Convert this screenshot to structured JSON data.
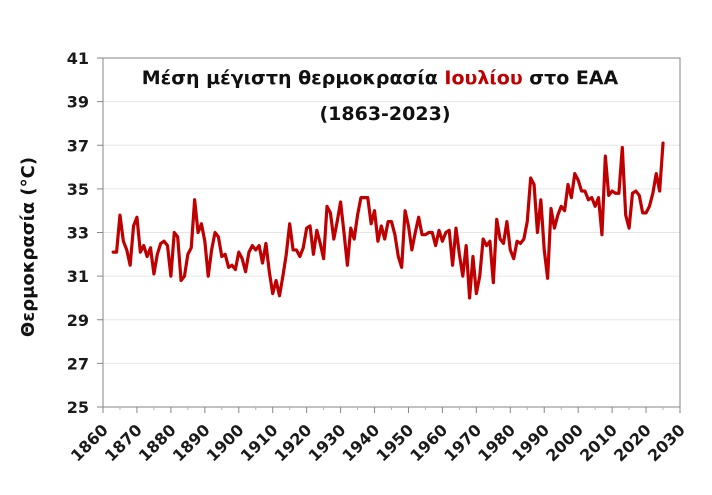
{
  "chart_data": {
    "type": "line",
    "title_parts": [
      {
        "text": "Μέση μέγιστη θερμοκρασία ",
        "color": "#111111"
      },
      {
        "text": "Ιουλίου",
        "color": "#c00000"
      },
      {
        "text": " στο ΕΑΑ",
        "color": "#111111"
      }
    ],
    "title": "Μέση μέγιστη θερμοκρασία Ιουλίου στο ΕΑΑ",
    "subtitle": "(1863-2023)",
    "xlabel": "",
    "ylabel": "Θερμοκρασία (°C)",
    "xlim": [
      1860,
      2030
    ],
    "ylim": [
      25,
      41
    ],
    "x_ticks": [
      1860,
      1870,
      1880,
      1890,
      1900,
      1910,
      1920,
      1930,
      1940,
      1950,
      1960,
      1970,
      1980,
      1990,
      2000,
      2010,
      2020,
      2030
    ],
    "y_ticks": [
      25,
      27,
      29,
      31,
      33,
      35,
      37,
      39,
      41
    ],
    "grid": {
      "horizontal": true,
      "vertical": false
    },
    "legend": null,
    "series": [
      {
        "name": "Μέση μέγιστη θερμοκρασία Ιουλίου",
        "color": "#c00000",
        "x_start": 1863,
        "x_end": 2023,
        "values": [
          32.1,
          32.1,
          33.8,
          32.6,
          32.2,
          31.5,
          33.3,
          33.7,
          32.1,
          32.4,
          31.9,
          32.3,
          31.1,
          32.0,
          32.5,
          32.6,
          32.4,
          31.0,
          33.0,
          32.8,
          30.8,
          31.0,
          32.0,
          32.3,
          34.5,
          33.0,
          33.4,
          32.6,
          31.0,
          32.2,
          33.0,
          32.8,
          31.9,
          32.0,
          31.4,
          31.5,
          31.3,
          32.1,
          31.8,
          31.2,
          32.1,
          32.4,
          32.2,
          32.4,
          31.6,
          32.5,
          31.2,
          30.2,
          30.8,
          30.1,
          31.0,
          32.0,
          33.4,
          32.2,
          32.2,
          31.9,
          32.3,
          33.2,
          33.3,
          32.0,
          33.1,
          32.5,
          31.8,
          34.2,
          33.9,
          32.7,
          33.5,
          34.4,
          33.0,
          31.5,
          33.2,
          32.7,
          33.8,
          34.6,
          34.6,
          34.6,
          33.4,
          34.0,
          32.6,
          33.3,
          32.7,
          33.5,
          33.5,
          32.9,
          31.9,
          31.4,
          34.0,
          33.3,
          32.2,
          33.0,
          33.7,
          32.9,
          32.9,
          33.0,
          33.0,
          32.4,
          33.1,
          32.6,
          33.0,
          33.1,
          31.5,
          33.2,
          32.0,
          31.0,
          32.4,
          30.0,
          31.9,
          30.2,
          31.0,
          32.7,
          32.4,
          32.6,
          30.7,
          33.6,
          32.7,
          32.5,
          33.5,
          32.2,
          31.8,
          32.6,
          32.5,
          32.7,
          33.5,
          35.5,
          35.2,
          33.0,
          34.5,
          32.2,
          30.9,
          34.1,
          33.2,
          33.8,
          34.2,
          34.0,
          35.2,
          34.6,
          35.7,
          35.4,
          34.9,
          34.9,
          34.5,
          34.6,
          34.2,
          34.6,
          32.9,
          36.5,
          34.7,
          34.9,
          34.8,
          34.8,
          36.9,
          33.8,
          33.2,
          34.8,
          34.9,
          34.7,
          33.9,
          33.9,
          34.2,
          34.8,
          35.7,
          34.9,
          37.1
        ]
      }
    ]
  }
}
